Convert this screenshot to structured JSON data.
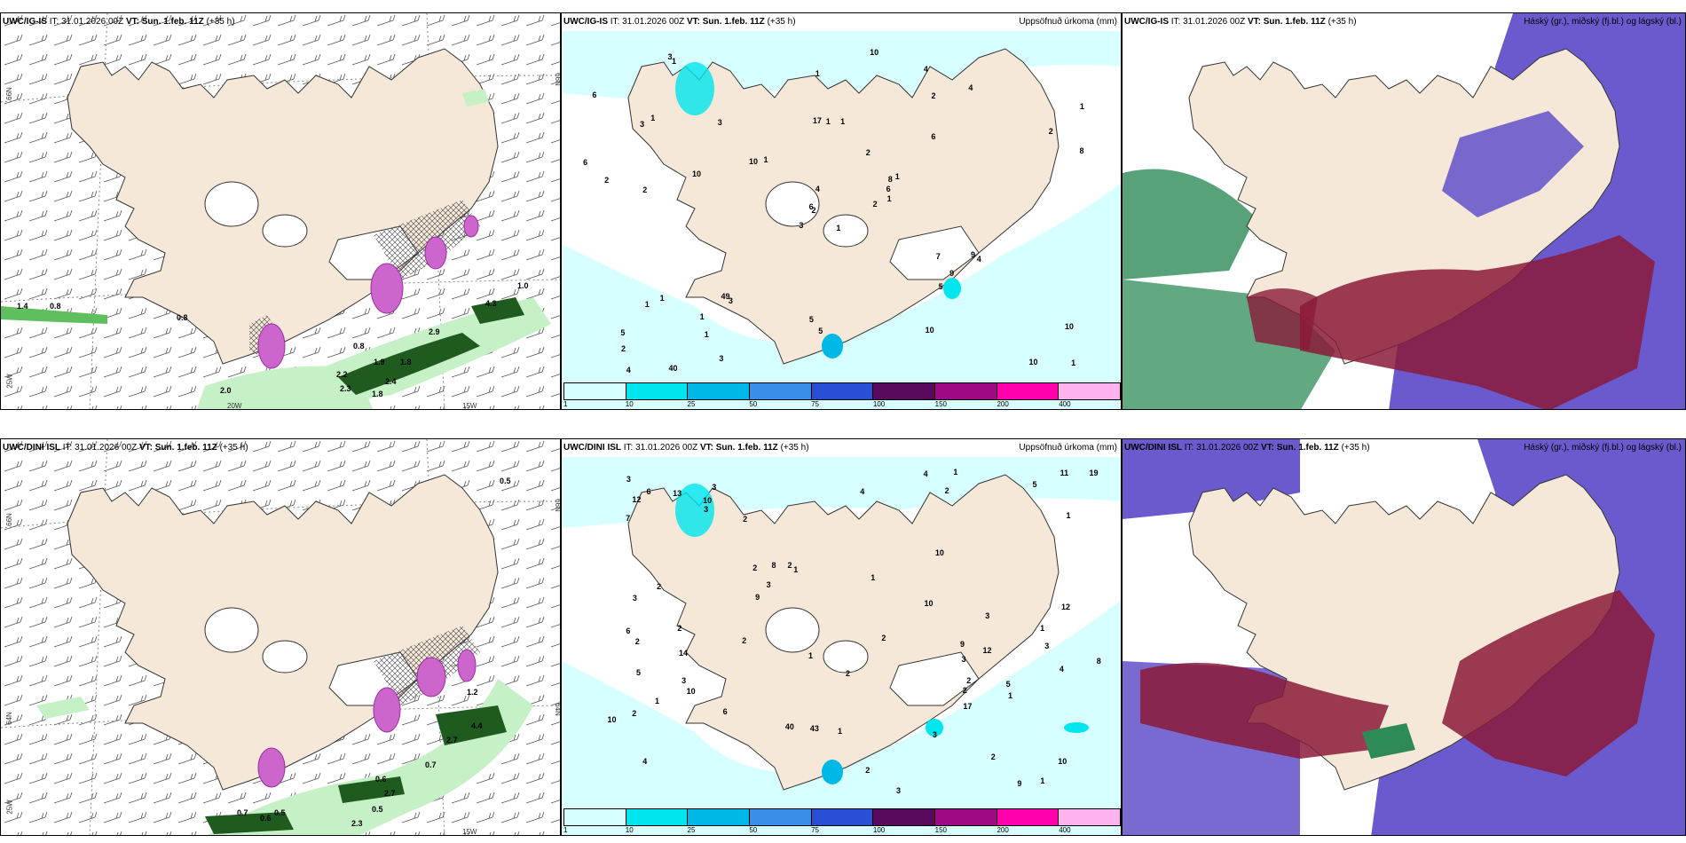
{
  "panels": {
    "p1": {
      "model": "UWC/IG-IS",
      "it_label": "IT:",
      "it_value": "31.01.2026 00Z",
      "vt_label": "VT:",
      "vt_value": "Sun. 1.feb. 11Z",
      "lead": "(+35 h)",
      "right_title": ""
    },
    "p2": {
      "model": "UWC/IG-IS",
      "it_label": "IT:",
      "it_value": "31.01.2026 00Z",
      "vt_label": "VT:",
      "vt_value": "Sun. 1.feb. 11Z",
      "lead": "(+35 h)",
      "right_title": "Uppsöfnuð úrkoma (mm)"
    },
    "p3": {
      "model": "UWC/IG-IS",
      "it_label": "IT:",
      "it_value": "31.01.2026 00Z",
      "vt_label": "VT:",
      "vt_value": "Sun. 1.feb. 11Z",
      "lead": "(+35 h)",
      "right_title": "Háský (gr.), miðský (fj.bl.) og lágský (bl.)"
    },
    "p4": {
      "model": "UWC/DINI ISL",
      "it_label": "IT:",
      "it_value": "31.01.2026 00Z",
      "vt_label": "VT:",
      "vt_value": "Sun. 1.feb. 11Z",
      "lead": "(+35 h)",
      "right_title": ""
    },
    "p5": {
      "model": "UWC/DINI ISL",
      "it_label": "IT:",
      "it_value": "31.01.2026 00Z",
      "vt_label": "VT:",
      "vt_value": "Sun. 1.feb. 11Z",
      "lead": "(+35 h)",
      "right_title": "Uppsöfnuð úrkoma (mm)"
    },
    "p6": {
      "model": "UWC/DINI ISL",
      "it_label": "IT:",
      "it_value": "31.01.2026 00Z",
      "vt_label": "VT:",
      "vt_value": "Sun. 1.feb. 11Z",
      "lead": "(+35 h)",
      "right_title": "Háský (gr.), miðský (fj.bl.) og lágský (bl.)"
    }
  },
  "grid_labels": {
    "lat66": "66N",
    "lat64": "64N",
    "lat63": "63N",
    "lon25": "25W",
    "lon20": "20W",
    "lon15": "15W"
  },
  "precip_legend": {
    "labels": [
      "1",
      "10",
      "25",
      "50",
      "75",
      "100",
      "150",
      "200",
      "400"
    ],
    "colors": [
      "#d8ffff",
      "#00e5ee",
      "#00b8e6",
      "#3a8ee8",
      "#2a4fd6",
      "#5a0a5a",
      "#9e0a84",
      "#ff00aa",
      "#ffb3ee"
    ]
  },
  "wind_values_top": [
    "1.4",
    "0.8",
    "0.8",
    "1.0",
    "4.3",
    "2.9",
    "0.8",
    "1.9",
    "1.8",
    "2.2",
    "2.3",
    "2.0",
    "1.8",
    "2.4"
  ],
  "wind_values_bottom": [
    "0.5",
    "1.2",
    "4.4",
    "2.7",
    "0.7",
    "0.6",
    "2.7",
    "0.5",
    "0.7",
    "0.6",
    "0.5",
    "2.3"
  ],
  "precip_values_top": [
    "1",
    "3",
    "2",
    "5",
    "8",
    "3",
    "4",
    "1",
    "2",
    "2",
    "1",
    "1",
    "2",
    "1",
    "3",
    "6",
    "40",
    "17",
    "2",
    "1",
    "1",
    "2",
    "1",
    "1",
    "1",
    "4",
    "1",
    "1",
    "2",
    "7",
    "8",
    "6",
    "5",
    "4",
    "3",
    "4",
    "49",
    "10",
    "10",
    "9",
    "10",
    "10",
    "10",
    "5",
    "3",
    "6",
    "6",
    "4",
    "5",
    "1",
    "1",
    "2",
    "6",
    "9",
    "10",
    "1",
    "3"
  ],
  "precip_values_bottom": [
    "3",
    "3",
    "4",
    "3",
    "1",
    "2",
    "2",
    "2",
    "2",
    "3",
    "7",
    "6",
    "12",
    "10",
    "40",
    "12",
    "2",
    "2",
    "2",
    "10",
    "19",
    "5",
    "9",
    "4",
    "4",
    "10",
    "2",
    "2",
    "3",
    "3",
    "2",
    "3",
    "3",
    "2",
    "1",
    "1",
    "2",
    "2",
    "1",
    "1",
    "1",
    "1",
    "1",
    "43",
    "5",
    "6",
    "10",
    "6",
    "10",
    "3",
    "8",
    "8",
    "11",
    "9",
    "17",
    "9",
    "10",
    "3",
    "14",
    "13",
    "12",
    "2",
    "1",
    "5",
    "4",
    "2",
    "1",
    "3"
  ],
  "colors": {
    "land": "#f6e8d8",
    "wind_green_light": "#c6f0c6",
    "wind_green_mid": "#5fbf5f",
    "wind_green_dark": "#1f5a1f",
    "purple": "#cc66cc",
    "precip_light": "#d8ffff",
    "precip_cyan": "#00e5ee",
    "cloud_high": "#8b1a3a",
    "cloud_mid": "#2e8b57",
    "cloud_low": "#6a5acd"
  }
}
